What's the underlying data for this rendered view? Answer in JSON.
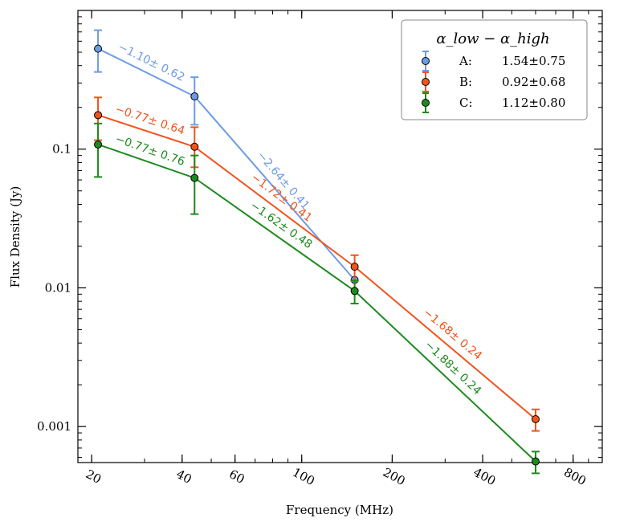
{
  "chart_data": {
    "type": "line",
    "xscale": "log",
    "yscale": "log",
    "xlabel": "Frequency (MHz)",
    "ylabel": "Flux Density (Jy)",
    "xlim": [
      18,
      1000
    ],
    "ylim": [
      0.00055,
      1.0
    ],
    "x_ticks": [
      {
        "value": 20,
        "label": "20"
      },
      {
        "value": 40,
        "label": "40"
      },
      {
        "value": 60,
        "label": "60"
      },
      {
        "value": 100,
        "label": "100"
      },
      {
        "value": 200,
        "label": "200"
      },
      {
        "value": 400,
        "label": "400"
      },
      {
        "value": 800,
        "label": "800"
      }
    ],
    "y_ticks": [
      {
        "value": 0.001,
        "label": "0.001"
      },
      {
        "value": 0.01,
        "label": "0.01"
      },
      {
        "value": 0.1,
        "label": "0.1"
      }
    ],
    "legend": {
      "title": "α_low − α_high",
      "position": "top-right",
      "entries": [
        {
          "series": "A",
          "label": "A:",
          "value": "1.54±0.75"
        },
        {
          "series": "B",
          "label": "B:",
          "value": "0.92±0.68"
        },
        {
          "series": "C",
          "label": "C:",
          "value": "1.12±0.80"
        }
      ]
    },
    "series": [
      {
        "name": "A",
        "color": "#6d9be6",
        "points": [
          {
            "x": 21.0,
            "y": 0.53,
            "err_low": 0.17,
            "err_high": 0.19
          },
          {
            "x": 44.0,
            "y": 0.24,
            "err_low": 0.09,
            "err_high": 0.09
          },
          {
            "x": 150.0,
            "y": 0.0114,
            "err_low": 0.0,
            "err_high": 0.0
          }
        ],
        "slope_labels": [
          "−1.10± 0.62",
          "−2.64± 0.41"
        ]
      },
      {
        "name": "B",
        "color": "#f0541e",
        "points": [
          {
            "x": 21.0,
            "y": 0.176,
            "err_low": 0.06,
            "err_high": 0.06
          },
          {
            "x": 44.0,
            "y": 0.104,
            "err_low": 0.03,
            "err_high": 0.04
          },
          {
            "x": 150.0,
            "y": 0.0142,
            "err_low": 0.003,
            "err_high": 0.003
          },
          {
            "x": 600.0,
            "y": 0.00113,
            "err_low": 0.0002,
            "err_high": 0.0002
          }
        ],
        "slope_labels": [
          "−0.77± 0.64",
          "−1.72± 0.41",
          "−1.68± 0.24"
        ]
      },
      {
        "name": "C",
        "color": "#1e8a1e",
        "points": [
          {
            "x": 21.0,
            "y": 0.108,
            "err_low": 0.045,
            "err_high": 0.045
          },
          {
            "x": 44.0,
            "y": 0.062,
            "err_low": 0.028,
            "err_high": 0.028
          },
          {
            "x": 150.0,
            "y": 0.0095,
            "err_low": 0.0018,
            "err_high": 0.0018
          },
          {
            "x": 600.0,
            "y": 0.00056,
            "err_low": 0.0001,
            "err_high": 0.0001
          }
        ],
        "slope_labels": [
          "−0.77± 0.76",
          "−1.62± 0.48",
          "−1.88± 0.24"
        ]
      }
    ]
  }
}
